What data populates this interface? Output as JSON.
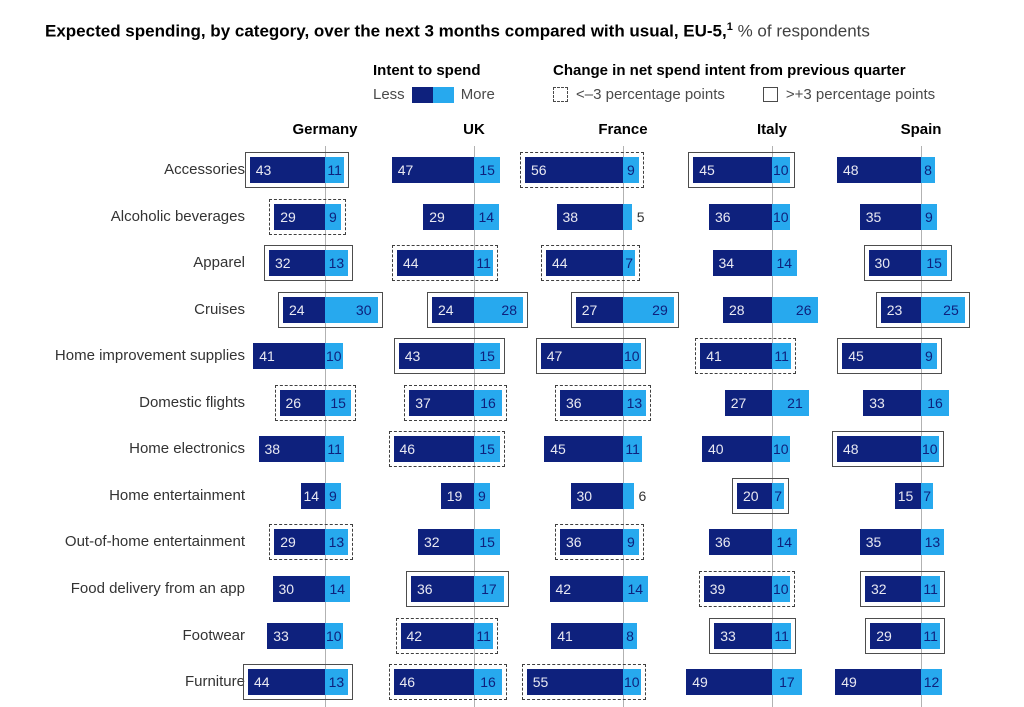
{
  "title": {
    "bold": "Expected spending, by category, over the next 3 months compared with usual, EU-5,",
    "superscript": "1",
    "rest": " % of respondents"
  },
  "legend": {
    "intent": {
      "heading": "Intent to spend",
      "less_label": "Less",
      "more_label": "More"
    },
    "change": {
      "heading": "Change in net spend intent from previous quarter",
      "decrease_label": "<–3 percentage points",
      "increase_label": ">+3 percentage points"
    }
  },
  "colors": {
    "less": "#0e217d",
    "more": "#27a9ee",
    "more_text": "#0e217d",
    "axis": "#b2b2b2"
  },
  "chart_data": {
    "type": "bar",
    "variant": "diverging-paired-horizontal",
    "title": "Expected spending, by category, over the next 3 months compared with usual, EU-5, % of respondents",
    "unit": "% of respondents",
    "legend_position": "top",
    "change_encoding": {
      "down": "dashed outline, <-3 percentage points",
      "up": "solid outline, >+3 percentage points",
      "none": "no outline"
    },
    "countries": [
      "Germany",
      "UK",
      "France",
      "Italy",
      "Spain"
    ],
    "categories": [
      "Accessories",
      "Alcoholic beverages",
      "Apparel",
      "Cruises",
      "Home improvement supplies",
      "Domestic flights",
      "Home electronics",
      "Home entertainment",
      "Out-of-home entertainment",
      "Food delivery from an app",
      "Footwear",
      "Furniture"
    ],
    "rows": [
      {
        "category": "Accessories",
        "values": [
          {
            "less": 43,
            "more": 11,
            "change": "up"
          },
          {
            "less": 47,
            "more": 15,
            "change": "none"
          },
          {
            "less": 56,
            "more": 9,
            "change": "down"
          },
          {
            "less": 45,
            "more": 10,
            "change": "up"
          },
          {
            "less": 48,
            "more": 8,
            "change": "none"
          }
        ]
      },
      {
        "category": "Alcoholic beverages",
        "values": [
          {
            "less": 29,
            "more": 9,
            "change": "down"
          },
          {
            "less": 29,
            "more": 14,
            "change": "none"
          },
          {
            "less": 38,
            "more": 5,
            "change": "none"
          },
          {
            "less": 36,
            "more": 10,
            "change": "none"
          },
          {
            "less": 35,
            "more": 9,
            "change": "none"
          }
        ]
      },
      {
        "category": "Apparel",
        "values": [
          {
            "less": 32,
            "more": 13,
            "change": "up"
          },
          {
            "less": 44,
            "more": 11,
            "change": "down"
          },
          {
            "less": 44,
            "more": 7,
            "change": "down"
          },
          {
            "less": 34,
            "more": 14,
            "change": "none"
          },
          {
            "less": 30,
            "more": 15,
            "change": "up"
          }
        ]
      },
      {
        "category": "Cruises",
        "values": [
          {
            "less": 24,
            "more": 30,
            "change": "up"
          },
          {
            "less": 24,
            "more": 28,
            "change": "up"
          },
          {
            "less": 27,
            "more": 29,
            "change": "up"
          },
          {
            "less": 28,
            "more": 26,
            "change": "none"
          },
          {
            "less": 23,
            "more": 25,
            "change": "up"
          }
        ]
      },
      {
        "category": "Home improvement supplies",
        "values": [
          {
            "less": 41,
            "more": 10,
            "change": "none"
          },
          {
            "less": 43,
            "more": 15,
            "change": "up"
          },
          {
            "less": 47,
            "more": 10,
            "change": "up"
          },
          {
            "less": 41,
            "more": 11,
            "change": "down"
          },
          {
            "less": 45,
            "more": 9,
            "change": "up"
          }
        ]
      },
      {
        "category": "Domestic flights",
        "values": [
          {
            "less": 26,
            "more": 15,
            "change": "down"
          },
          {
            "less": 37,
            "more": 16,
            "change": "down"
          },
          {
            "less": 36,
            "more": 13,
            "change": "down"
          },
          {
            "less": 27,
            "more": 21,
            "change": "none"
          },
          {
            "less": 33,
            "more": 16,
            "change": "none"
          }
        ]
      },
      {
        "category": "Home electronics",
        "values": [
          {
            "less": 38,
            "more": 11,
            "change": "none"
          },
          {
            "less": 46,
            "more": 15,
            "change": "down"
          },
          {
            "less": 45,
            "more": 11,
            "change": "none"
          },
          {
            "less": 40,
            "more": 10,
            "change": "none"
          },
          {
            "less": 48,
            "more": 10,
            "change": "up"
          }
        ]
      },
      {
        "category": "Home entertainment",
        "values": [
          {
            "less": 14,
            "more": 9,
            "change": "none"
          },
          {
            "less": 19,
            "more": 9,
            "change": "none"
          },
          {
            "less": 30,
            "more": 6,
            "change": "none"
          },
          {
            "less": 20,
            "more": 7,
            "change": "up"
          },
          {
            "less": 15,
            "more": 7,
            "change": "none"
          }
        ]
      },
      {
        "category": "Out-of-home entertainment",
        "values": [
          {
            "less": 29,
            "more": 13,
            "change": "down"
          },
          {
            "less": 32,
            "more": 15,
            "change": "none"
          },
          {
            "less": 36,
            "more": 9,
            "change": "down"
          },
          {
            "less": 36,
            "more": 14,
            "change": "none"
          },
          {
            "less": 35,
            "more": 13,
            "change": "none"
          }
        ]
      },
      {
        "category": "Food delivery from an app",
        "values": [
          {
            "less": 30,
            "more": 14,
            "change": "none"
          },
          {
            "less": 36,
            "more": 17,
            "change": "up"
          },
          {
            "less": 42,
            "more": 14,
            "change": "none"
          },
          {
            "less": 39,
            "more": 10,
            "change": "down"
          },
          {
            "less": 32,
            "more": 11,
            "change": "up"
          }
        ]
      },
      {
        "category": "Footwear",
        "values": [
          {
            "less": 33,
            "more": 10,
            "change": "none"
          },
          {
            "less": 42,
            "more": 11,
            "change": "down"
          },
          {
            "less": 41,
            "more": 8,
            "change": "none"
          },
          {
            "less": 33,
            "more": 11,
            "change": "up"
          },
          {
            "less": 29,
            "more": 11,
            "change": "up"
          }
        ]
      },
      {
        "category": "Furniture",
        "values": [
          {
            "less": 44,
            "more": 13,
            "change": "up"
          },
          {
            "less": 46,
            "more": 16,
            "change": "down"
          },
          {
            "less": 55,
            "more": 10,
            "change": "down"
          },
          {
            "less": 49,
            "more": 17,
            "change": "none"
          },
          {
            "less": 49,
            "more": 12,
            "change": "none"
          }
        ]
      }
    ]
  }
}
